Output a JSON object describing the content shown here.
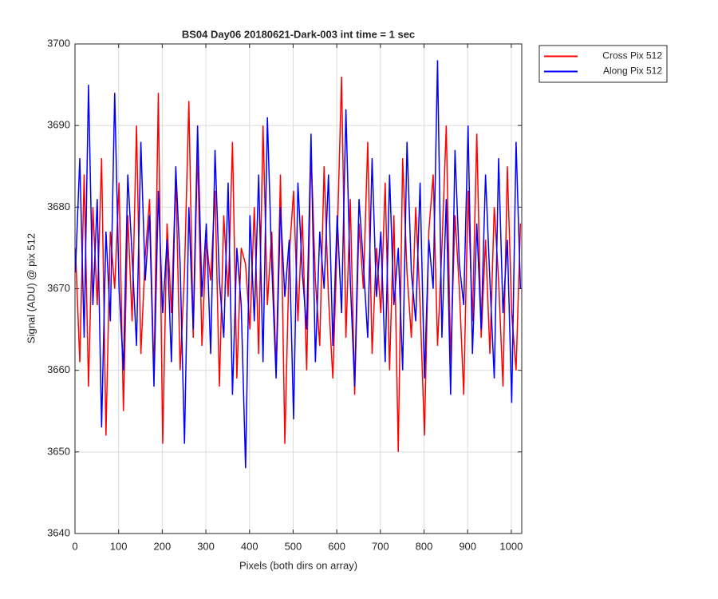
{
  "chart_data": {
    "type": "line",
    "title": "BS04 Day06 20180621-Dark-003 int time = 1 sec",
    "x_label": "Pixels (both dirs on array)",
    "y_label": "Signal (ADU) @ pix 512",
    "x": [
      1,
      11,
      21,
      31,
      41,
      51,
      61,
      71,
      81,
      91,
      101,
      111,
      121,
      131,
      141,
      151,
      161,
      171,
      181,
      191,
      201,
      211,
      221,
      231,
      241,
      251,
      261,
      271,
      281,
      291,
      301,
      311,
      321,
      331,
      341,
      351,
      361,
      371,
      381,
      391,
      401,
      411,
      421,
      431,
      441,
      451,
      461,
      471,
      481,
      491,
      501,
      511,
      521,
      531,
      541,
      551,
      561,
      571,
      581,
      591,
      601,
      611,
      621,
      631,
      641,
      651,
      661,
      671,
      681,
      691,
      701,
      711,
      721,
      731,
      741,
      751,
      761,
      771,
      781,
      791,
      801,
      811,
      821,
      831,
      841,
      851,
      861,
      871,
      881,
      891,
      901,
      911,
      921,
      931,
      941,
      951,
      961,
      971,
      981,
      991,
      1001,
      1011,
      1021
    ],
    "series": [
      {
        "name": "Cross Pix 512",
        "color": "#ff0000",
        "values": [
          3675,
          3661,
          3684,
          3658,
          3680,
          3668,
          3686,
          3652,
          3677,
          3670,
          3683,
          3655,
          3679,
          3666,
          3690,
          3662,
          3674,
          3681,
          3659,
          3694,
          3651,
          3678,
          3667,
          3684,
          3660,
          3672,
          3693,
          3664,
          3687,
          3663,
          3676,
          3671,
          3682,
          3658,
          3679,
          3669,
          3688,
          3659,
          3675,
          3673,
          3665,
          3680,
          3662,
          3690,
          3668,
          3677,
          3660,
          3684,
          3651,
          3674,
          3682,
          3666,
          3679,
          3660,
          3687,
          3671,
          3663,
          3685,
          3669,
          3659,
          3676,
          3696,
          3664,
          3681,
          3657,
          3678,
          3670,
          3688,
          3662,
          3675,
          3667,
          3683,
          3660,
          3679,
          3650,
          3686,
          3672,
          3664,
          3680,
          3668,
          3652,
          3677,
          3684,
          3663,
          3675,
          3690,
          3661,
          3679,
          3670,
          3657,
          3682,
          3666,
          3689,
          3664,
          3676,
          3662,
          3680,
          3671,
          3658,
          3685,
          3667,
          3660,
          3678
        ]
      },
      {
        "name": "Along Pix 512",
        "color": "#0000ff",
        "values": [
          3672,
          3686,
          3664,
          3695,
          3668,
          3681,
          3653,
          3677,
          3666,
          3694,
          3670,
          3660,
          3684,
          3674,
          3663,
          3688,
          3671,
          3679,
          3658,
          3682,
          3667,
          3676,
          3661,
          3685,
          3673,
          3651,
          3680,
          3665,
          3690,
          3669,
          3678,
          3662,
          3687,
          3671,
          3664,
          3683,
          3657,
          3675,
          3668,
          3648,
          3679,
          3666,
          3684,
          3661,
          3691,
          3673,
          3659,
          3680,
          3669,
          3676,
          3654,
          3683,
          3672,
          3665,
          3689,
          3661,
          3677,
          3670,
          3684,
          3663,
          3679,
          3667,
          3692,
          3671,
          3658,
          3681,
          3673,
          3664,
          3686,
          3669,
          3677,
          3661,
          3684,
          3668,
          3675,
          3660,
          3688,
          3672,
          3666,
          3683,
          3659,
          3676,
          3670,
          3698,
          3664,
          3681,
          3657,
          3687,
          3673,
          3668,
          3690,
          3662,
          3678,
          3665,
          3684,
          3671,
          3659,
          3686,
          3667,
          3676,
          3656,
          3688,
          3670
        ]
      }
    ],
    "xlim": [
      0,
      1024
    ],
    "xticks": [
      0,
      100,
      200,
      300,
      400,
      500,
      600,
      700,
      800,
      900,
      1000
    ],
    "ylim": [
      3640,
      3700
    ],
    "yticks": [
      3640,
      3650,
      3660,
      3670,
      3680,
      3690,
      3700
    ],
    "grid": true,
    "legend": "outside-top-right"
  }
}
